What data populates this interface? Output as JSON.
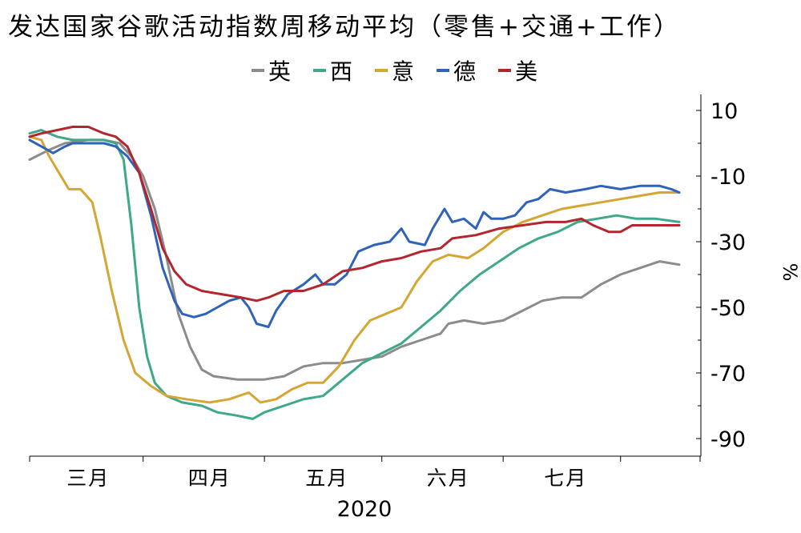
{
  "chart_data": {
    "type": "line",
    "title": "发达国家谷歌活动指数周移动平均（零售+交通+工作）",
    "xlabel": "2020",
    "ylabel": "%",
    "ylim": [
      -95,
      15
    ],
    "yticks": [
      10,
      -10,
      -30,
      -50,
      -70,
      -90
    ],
    "ytick_labels": [
      "10",
      "-10",
      "-30",
      "-50",
      "-70",
      "-90"
    ],
    "x_tick_dates": [
      "2020-02-15",
      "2020-03-15",
      "2020-04-15",
      "2020-05-15",
      "2020-06-15",
      "2020-07-15",
      "2020-08-01"
    ],
    "x_labels": [
      {
        "label": "三月",
        "date": "2020-03-01"
      },
      {
        "label": "四月",
        "date": "2020-04-01"
      },
      {
        "label": "五月",
        "date": "2020-05-01"
      },
      {
        "label": "六月",
        "date": "2020-06-01"
      },
      {
        "label": "七月",
        "date": "2020-07-01"
      }
    ],
    "x_range": [
      "2020-02-15",
      "2020-07-30"
    ],
    "legend_position": "top",
    "grid": false,
    "series": [
      {
        "name": "英",
        "color": "#8c8c8c",
        "points": [
          [
            "2020-02-15",
            -5
          ],
          [
            "2020-02-20",
            -2
          ],
          [
            "2020-02-24",
            0
          ],
          [
            "2020-03-01",
            1
          ],
          [
            "2020-03-05",
            1
          ],
          [
            "2020-03-09",
            0
          ],
          [
            "2020-03-12",
            -4
          ],
          [
            "2020-03-15",
            -10
          ],
          [
            "2020-03-18",
            -20
          ],
          [
            "2020-03-21",
            -35
          ],
          [
            "2020-03-24",
            -52
          ],
          [
            "2020-03-27",
            -62
          ],
          [
            "2020-03-30",
            -69
          ],
          [
            "2020-04-02",
            -71
          ],
          [
            "2020-04-08",
            -72
          ],
          [
            "2020-04-15",
            -72
          ],
          [
            "2020-04-20",
            -71
          ],
          [
            "2020-04-25",
            -68
          ],
          [
            "2020-04-30",
            -67
          ],
          [
            "2020-05-05",
            -67
          ],
          [
            "2020-05-10",
            -66
          ],
          [
            "2020-05-15",
            -65
          ],
          [
            "2020-05-20",
            -62
          ],
          [
            "2020-05-25",
            -60
          ],
          [
            "2020-05-30",
            -58
          ],
          [
            "2020-06-01",
            -55
          ],
          [
            "2020-06-05",
            -54
          ],
          [
            "2020-06-10",
            -55
          ],
          [
            "2020-06-15",
            -54
          ],
          [
            "2020-06-20",
            -51
          ],
          [
            "2020-06-25",
            -48
          ],
          [
            "2020-06-30",
            -47
          ],
          [
            "2020-07-05",
            -47
          ],
          [
            "2020-07-10",
            -43
          ],
          [
            "2020-07-15",
            -40
          ],
          [
            "2020-07-20",
            -38
          ],
          [
            "2020-07-25",
            -36
          ],
          [
            "2020-07-30",
            -37
          ]
        ]
      },
      {
        "name": "西",
        "color": "#3ea88a",
        "points": [
          [
            "2020-02-15",
            3
          ],
          [
            "2020-02-18",
            4
          ],
          [
            "2020-02-22",
            2
          ],
          [
            "2020-02-26",
            1
          ],
          [
            "2020-03-01",
            1
          ],
          [
            "2020-03-05",
            1
          ],
          [
            "2020-03-08",
            0
          ],
          [
            "2020-03-10",
            -5
          ],
          [
            "2020-03-12",
            -25
          ],
          [
            "2020-03-14",
            -50
          ],
          [
            "2020-03-16",
            -65
          ],
          [
            "2020-03-18",
            -73
          ],
          [
            "2020-03-21",
            -77
          ],
          [
            "2020-03-25",
            -79
          ],
          [
            "2020-03-30",
            -80
          ],
          [
            "2020-04-03",
            -82
          ],
          [
            "2020-04-08",
            -83
          ],
          [
            "2020-04-12",
            -84
          ],
          [
            "2020-04-15",
            -82
          ],
          [
            "2020-04-20",
            -80
          ],
          [
            "2020-04-25",
            -78
          ],
          [
            "2020-04-30",
            -77
          ],
          [
            "2020-05-05",
            -72
          ],
          [
            "2020-05-10",
            -67
          ],
          [
            "2020-05-15",
            -64
          ],
          [
            "2020-05-20",
            -61
          ],
          [
            "2020-05-25",
            -56
          ],
          [
            "2020-05-30",
            -51
          ],
          [
            "2020-06-04",
            -45
          ],
          [
            "2020-06-09",
            -40
          ],
          [
            "2020-06-14",
            -36
          ],
          [
            "2020-06-19",
            -32
          ],
          [
            "2020-06-24",
            -29
          ],
          [
            "2020-06-29",
            -27
          ],
          [
            "2020-07-04",
            -24
          ],
          [
            "2020-07-09",
            -23
          ],
          [
            "2020-07-14",
            -22
          ],
          [
            "2020-07-19",
            -23
          ],
          [
            "2020-07-24",
            -23
          ],
          [
            "2020-07-30",
            -24
          ]
        ]
      },
      {
        "name": "意",
        "color": "#d4a634",
        "points": [
          [
            "2020-02-15",
            2
          ],
          [
            "2020-02-18",
            1
          ],
          [
            "2020-02-20",
            -4
          ],
          [
            "2020-02-23",
            -10
          ],
          [
            "2020-02-25",
            -14
          ],
          [
            "2020-02-28",
            -14
          ],
          [
            "2020-03-02",
            -18
          ],
          [
            "2020-03-04",
            -28
          ],
          [
            "2020-03-07",
            -45
          ],
          [
            "2020-03-10",
            -60
          ],
          [
            "2020-03-13",
            -70
          ],
          [
            "2020-03-17",
            -74
          ],
          [
            "2020-03-21",
            -77
          ],
          [
            "2020-03-26",
            -78
          ],
          [
            "2020-04-01",
            -79
          ],
          [
            "2020-04-06",
            -78
          ],
          [
            "2020-04-11",
            -76
          ],
          [
            "2020-04-14",
            -79
          ],
          [
            "2020-04-18",
            -78
          ],
          [
            "2020-04-22",
            -75
          ],
          [
            "2020-04-26",
            -73
          ],
          [
            "2020-04-30",
            -73
          ],
          [
            "2020-05-04",
            -68
          ],
          [
            "2020-05-08",
            -60
          ],
          [
            "2020-05-12",
            -54
          ],
          [
            "2020-05-16",
            -52
          ],
          [
            "2020-05-20",
            -50
          ],
          [
            "2020-05-24",
            -42
          ],
          [
            "2020-05-28",
            -36
          ],
          [
            "2020-06-01",
            -34
          ],
          [
            "2020-06-06",
            -35
          ],
          [
            "2020-06-10",
            -32
          ],
          [
            "2020-06-15",
            -27
          ],
          [
            "2020-06-20",
            -24
          ],
          [
            "2020-06-25",
            -22
          ],
          [
            "2020-06-30",
            -20
          ],
          [
            "2020-07-05",
            -19
          ],
          [
            "2020-07-10",
            -18
          ],
          [
            "2020-07-15",
            -17
          ],
          [
            "2020-07-20",
            -16
          ],
          [
            "2020-07-25",
            -15
          ],
          [
            "2020-07-30",
            -15
          ]
        ]
      },
      {
        "name": "德",
        "color": "#2f63b8",
        "points": [
          [
            "2020-02-15",
            1
          ],
          [
            "2020-02-18",
            -1
          ],
          [
            "2020-02-21",
            -3
          ],
          [
            "2020-02-24",
            -1
          ],
          [
            "2020-02-26",
            0
          ],
          [
            "2020-03-01",
            0
          ],
          [
            "2020-03-05",
            0
          ],
          [
            "2020-03-08",
            -1
          ],
          [
            "2020-03-11",
            -4
          ],
          [
            "2020-03-14",
            -9
          ],
          [
            "2020-03-17",
            -22
          ],
          [
            "2020-03-20",
            -38
          ],
          [
            "2020-03-23",
            -48
          ],
          [
            "2020-03-25",
            -52
          ],
          [
            "2020-03-28",
            -53
          ],
          [
            "2020-03-31",
            -52
          ],
          [
            "2020-04-03",
            -50
          ],
          [
            "2020-04-06",
            -48
          ],
          [
            "2020-04-09",
            -47
          ],
          [
            "2020-04-11",
            -50
          ],
          [
            "2020-04-13",
            -55
          ],
          [
            "2020-04-16",
            -56
          ],
          [
            "2020-04-18",
            -51
          ],
          [
            "2020-04-21",
            -46
          ],
          [
            "2020-04-25",
            -43
          ],
          [
            "2020-04-28",
            -40
          ],
          [
            "2020-04-30",
            -43
          ],
          [
            "2020-05-03",
            -43
          ],
          [
            "2020-05-06",
            -40
          ],
          [
            "2020-05-09",
            -33
          ],
          [
            "2020-05-13",
            -31
          ],
          [
            "2020-05-17",
            -30
          ],
          [
            "2020-05-20",
            -26
          ],
          [
            "2020-05-22",
            -30
          ],
          [
            "2020-05-26",
            -31
          ],
          [
            "2020-05-28",
            -26
          ],
          [
            "2020-05-31",
            -20
          ],
          [
            "2020-06-02",
            -24
          ],
          [
            "2020-06-05",
            -23
          ],
          [
            "2020-06-08",
            -26
          ],
          [
            "2020-06-10",
            -21
          ],
          [
            "2020-06-12",
            -23
          ],
          [
            "2020-06-15",
            -23
          ],
          [
            "2020-06-18",
            -22
          ],
          [
            "2020-06-21",
            -18
          ],
          [
            "2020-06-24",
            -17
          ],
          [
            "2020-06-27",
            -14
          ],
          [
            "2020-07-01",
            -15
          ],
          [
            "2020-07-06",
            -14
          ],
          [
            "2020-07-10",
            -13
          ],
          [
            "2020-07-15",
            -14
          ],
          [
            "2020-07-20",
            -13
          ],
          [
            "2020-07-25",
            -13
          ],
          [
            "2020-07-28",
            -14
          ],
          [
            "2020-07-30",
            -15
          ]
        ]
      },
      {
        "name": "美",
        "color": "#b3262e",
        "points": [
          [
            "2020-02-15",
            2
          ],
          [
            "2020-02-18",
            3
          ],
          [
            "2020-02-22",
            4
          ],
          [
            "2020-02-26",
            5
          ],
          [
            "2020-03-01",
            5
          ],
          [
            "2020-03-05",
            3
          ],
          [
            "2020-03-08",
            2
          ],
          [
            "2020-03-11",
            -1
          ],
          [
            "2020-03-14",
            -9
          ],
          [
            "2020-03-17",
            -20
          ],
          [
            "2020-03-20",
            -32
          ],
          [
            "2020-03-23",
            -39
          ],
          [
            "2020-03-26",
            -43
          ],
          [
            "2020-03-30",
            -45
          ],
          [
            "2020-04-04",
            -46
          ],
          [
            "2020-04-09",
            -47
          ],
          [
            "2020-04-13",
            -48
          ],
          [
            "2020-04-16",
            -47
          ],
          [
            "2020-04-20",
            -45
          ],
          [
            "2020-04-25",
            -45
          ],
          [
            "2020-04-30",
            -43
          ],
          [
            "2020-05-05",
            -39
          ],
          [
            "2020-05-10",
            -38
          ],
          [
            "2020-05-15",
            -36
          ],
          [
            "2020-05-20",
            -35
          ],
          [
            "2020-05-25",
            -33
          ],
          [
            "2020-05-30",
            -32
          ],
          [
            "2020-06-02",
            -29
          ],
          [
            "2020-06-08",
            -28
          ],
          [
            "2020-06-14",
            -26
          ],
          [
            "2020-06-20",
            -25
          ],
          [
            "2020-06-26",
            -24
          ],
          [
            "2020-07-01",
            -24
          ],
          [
            "2020-07-05",
            -23
          ],
          [
            "2020-07-08",
            -25
          ],
          [
            "2020-07-12",
            -27
          ],
          [
            "2020-07-15",
            -27
          ],
          [
            "2020-07-18",
            -25
          ],
          [
            "2020-07-24",
            -25
          ],
          [
            "2020-07-30",
            -25
          ]
        ]
      }
    ]
  }
}
